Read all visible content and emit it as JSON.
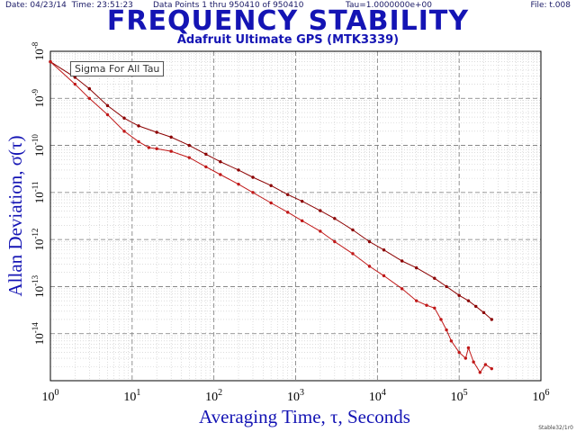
{
  "header": {
    "date": "Date: 04/23/14",
    "time": "Time: 23:51:23",
    "points": "Data Points 1 thru 950410 of 950410",
    "tau": "Tau=1.0000000e+00",
    "file": "File: t.008"
  },
  "footer": {
    "id": "Stable32/1r0"
  },
  "colors": {
    "title": "#1414b4",
    "axis_label": "#1414b4",
    "series_upper": "#8b0000",
    "series_lower": "#c01818",
    "grid_major": "#777777",
    "grid_minor": "#c8c8c8"
  },
  "chart_data": {
    "type": "line",
    "title": "FREQUENCY STABILITY",
    "subtitle": "Adafruit Ultimate GPS (MTK3339)",
    "xlabel": "Averaging Time, τ, Seconds",
    "ylabel": "Allan Deviation, σ(τ)",
    "x_scale": "log",
    "y_scale": "log",
    "xlim": [
      1,
      1000000
    ],
    "ylim": [
      1e-15,
      1e-08
    ],
    "x_ticks": [
      {
        "value": 1,
        "base": "10",
        "exp": "0"
      },
      {
        "value": 10,
        "base": "10",
        "exp": "1"
      },
      {
        "value": 100,
        "base": "10",
        "exp": "2"
      },
      {
        "value": 1000,
        "base": "10",
        "exp": "3"
      },
      {
        "value": 10000,
        "base": "10",
        "exp": "4"
      },
      {
        "value": 100000,
        "base": "10",
        "exp": "5"
      },
      {
        "value": 1000000,
        "base": "10",
        "exp": "6"
      }
    ],
    "y_ticks": [
      {
        "value": 1e-08,
        "base": "10",
        "exp": "-8"
      },
      {
        "value": 1e-09,
        "base": "10",
        "exp": "-9"
      },
      {
        "value": 1e-10,
        "base": "10",
        "exp": "-10"
      },
      {
        "value": 1e-11,
        "base": "10",
        "exp": "-11"
      },
      {
        "value": 1e-12,
        "base": "10",
        "exp": "-12"
      },
      {
        "value": 1e-13,
        "base": "10",
        "exp": "-13"
      },
      {
        "value": 1e-14,
        "base": "10",
        "exp": "-14"
      }
    ],
    "grid": true,
    "legend": {
      "position": "top-left",
      "entries": [
        "Sigma For All Tau"
      ]
    },
    "series": [
      {
        "color": "#8b0000",
        "x": [
          1,
          2,
          3,
          5,
          8,
          12,
          20,
          30,
          50,
          80,
          120,
          200,
          300,
          500,
          800,
          1200,
          2000,
          3000,
          5000,
          8000,
          12000,
          20000,
          30000,
          50000,
          70000,
          100000,
          130000,
          160000,
          200000,
          250000
        ],
        "y": [
          6e-09,
          2.8e-09,
          1.6e-09,
          7e-10,
          3.8e-10,
          2.6e-10,
          1.9e-10,
          1.5e-10,
          1e-10,
          6.5e-11,
          4.5e-11,
          3e-11,
          2.1e-11,
          1.4e-11,
          9e-12,
          6.5e-12,
          4.1e-12,
          2.8e-12,
          1.6e-12,
          9e-13,
          6e-13,
          3.5e-13,
          2.5e-13,
          1.5e-13,
          1e-13,
          6.5e-14,
          5e-14,
          3.8e-14,
          2.8e-14,
          2e-14
        ]
      },
      {
        "color": "#c01818",
        "x": [
          1,
          2,
          3,
          5,
          8,
          12,
          16,
          20,
          30,
          50,
          80,
          120,
          200,
          300,
          500,
          800,
          1200,
          2000,
          3000,
          5000,
          8000,
          12000,
          20000,
          30000,
          40000,
          50000,
          60000,
          70000,
          80000,
          100000,
          120000,
          130000,
          150000,
          180000,
          210000,
          250000
        ],
        "y": [
          6e-09,
          2e-09,
          1e-09,
          4.5e-10,
          2e-10,
          1.2e-10,
          9e-11,
          8.5e-11,
          7.5e-11,
          5.5e-11,
          3.5e-11,
          2.4e-11,
          1.5e-11,
          1e-11,
          6e-12,
          3.8e-12,
          2.5e-12,
          1.5e-12,
          9e-13,
          5e-13,
          2.7e-13,
          1.7e-13,
          9e-14,
          5e-14,
          4e-14,
          3.5e-14,
          2e-14,
          1.2e-14,
          7e-15,
          4e-15,
          3e-15,
          5e-15,
          2.5e-15,
          1.5e-15,
          2.2e-15,
          1.8e-15
        ]
      }
    ]
  }
}
